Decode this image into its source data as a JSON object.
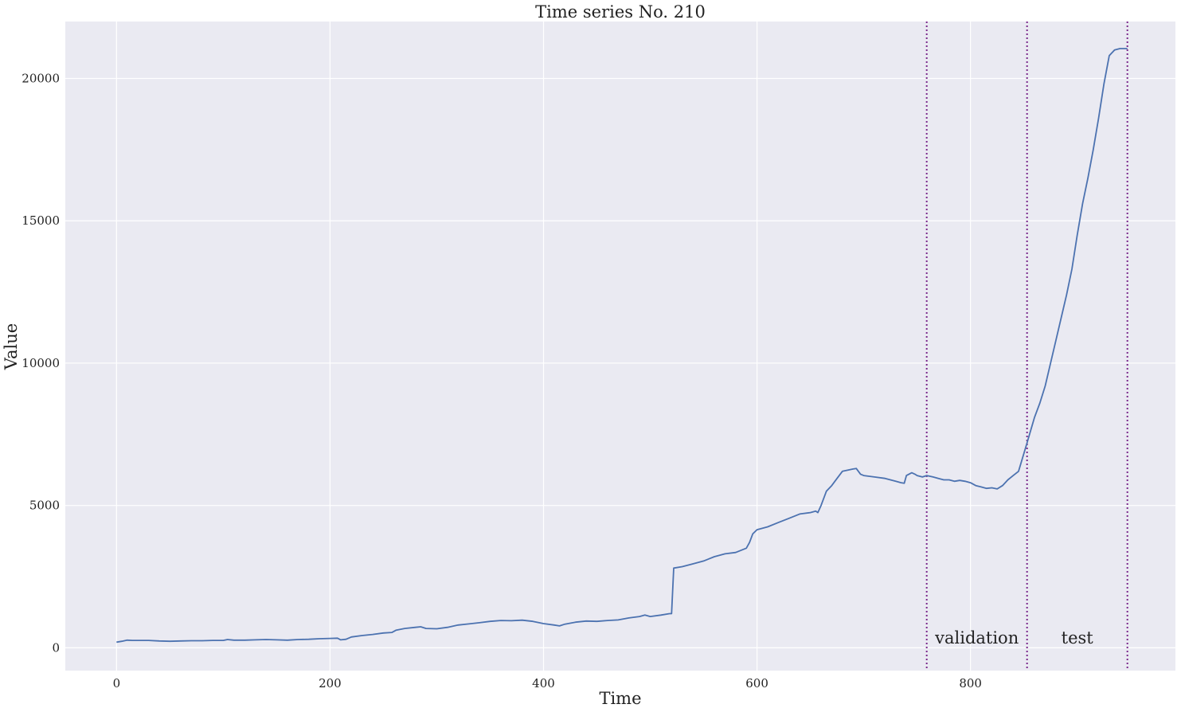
{
  "chart_data": {
    "type": "line",
    "title": "Time series No. 210",
    "xlabel": "Time",
    "ylabel": "Value",
    "xlim": [
      -48,
      992
    ],
    "ylim": [
      -800,
      22000
    ],
    "xticks": [
      0,
      200,
      400,
      600,
      800
    ],
    "yticks": [
      0,
      5000,
      10000,
      15000,
      20000
    ],
    "grid": true,
    "background_color": "#eaeaf2",
    "grid_color": "#ffffff",
    "line_color": "#4c72b0",
    "split_line_color": "#7b2a8c",
    "splits": [
      759,
      853,
      947
    ],
    "region_labels": [
      {
        "text": "validation",
        "x": 806,
        "y": 350
      },
      {
        "text": "test",
        "x": 900,
        "y": 350
      }
    ],
    "series": [
      {
        "x": [
          0,
          5,
          10,
          15,
          20,
          30,
          40,
          50,
          60,
          70,
          80,
          90,
          100,
          104,
          110,
          120,
          130,
          140,
          150,
          160,
          170,
          180,
          190,
          200,
          207,
          210,
          215,
          220,
          230,
          240,
          250,
          258,
          260,
          262,
          270,
          280,
          285,
          290,
          300,
          310,
          320,
          330,
          340,
          350,
          360,
          370,
          380,
          390,
          400,
          410,
          415,
          420,
          430,
          440,
          450,
          460,
          470,
          480,
          490,
          495,
          500,
          510,
          518,
          520,
          522,
          530,
          540,
          550,
          560,
          570,
          580,
          590,
          593,
          596,
          600,
          610,
          620,
          630,
          640,
          650,
          655,
          657,
          660,
          665,
          670,
          675,
          680,
          690,
          693,
          697,
          700,
          710,
          720,
          730,
          735,
          738,
          740,
          745,
          748,
          750,
          755,
          759,
          765,
          770,
          775,
          780,
          785,
          790,
          795,
          800,
          805,
          810,
          815,
          820,
          825,
          830,
          835,
          840,
          845,
          853,
          860,
          865,
          870,
          875,
          880,
          885,
          890,
          895,
          900,
          905,
          910,
          915,
          920,
          925,
          930,
          935,
          940,
          945,
          947
        ],
        "y": [
          200,
          230,
          270,
          260,
          260,
          260,
          240,
          230,
          240,
          250,
          250,
          260,
          260,
          290,
          270,
          270,
          280,
          290,
          280,
          270,
          290,
          300,
          320,
          330,
          340,
          280,
          300,
          380,
          430,
          470,
          520,
          540,
          580,
          620,
          680,
          720,
          740,
          680,
          670,
          720,
          800,
          840,
          880,
          930,
          960,
          950,
          970,
          930,
          850,
          800,
          770,
          830,
          900,
          940,
          930,
          960,
          980,
          1050,
          1100,
          1150,
          1100,
          1150,
          1200,
          1200,
          2800,
          2850,
          2950,
          3050,
          3200,
          3300,
          3350,
          3500,
          3700,
          4000,
          4150,
          4250,
          4400,
          4550,
          4700,
          4750,
          4800,
          4750,
          5000,
          5500,
          5700,
          5950,
          6200,
          6280,
          6300,
          6100,
          6050,
          6000,
          5950,
          5850,
          5800,
          5780,
          6050,
          6150,
          6100,
          6050,
          6000,
          6050,
          6000,
          5950,
          5900,
          5900,
          5850,
          5880,
          5850,
          5800,
          5700,
          5650,
          5600,
          5620,
          5580,
          5700,
          5900,
          6050,
          6200,
          7200,
          8100,
          8600,
          9200,
          10000,
          10800,
          11600,
          12400,
          13300,
          14500,
          15600,
          16500,
          17500,
          18600,
          19800,
          20800,
          21000,
          21050,
          21050,
          21050
        ]
      }
    ]
  }
}
